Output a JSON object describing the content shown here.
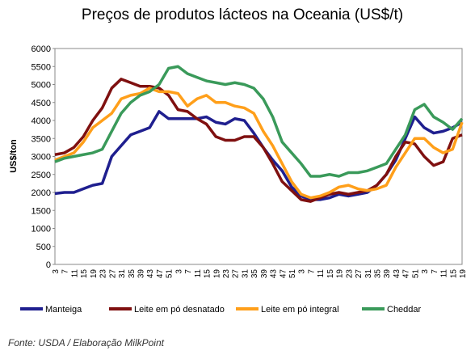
{
  "chart_data": {
    "type": "line",
    "title": "Preços de produtos lácteos na Oceania (US$/t)",
    "y_label": "US$/ton",
    "source": "Fonte: USDA / Elaboração  MilkPoint",
    "categories": [
      "3",
      "7",
      "11",
      "15",
      "19",
      "23",
      "27",
      "31",
      "35",
      "39",
      "43",
      "47",
      "51",
      "3",
      "7",
      "11",
      "15",
      "19",
      "23",
      "27",
      "31",
      "35",
      "39",
      "43",
      "47",
      "51",
      "3",
      "7",
      "11",
      "15",
      "19",
      "23",
      "27",
      "31",
      "35",
      "39",
      "43",
      "47",
      "51",
      "3",
      "7",
      "11",
      "15",
      "19"
    ],
    "ylim": [
      0,
      6000
    ],
    "yticks": [
      0,
      500,
      1000,
      1500,
      2000,
      2500,
      3000,
      3500,
      4000,
      4500,
      5000,
      5500,
      6000
    ],
    "grid": false,
    "legend": "bottom",
    "series": [
      {
        "name": "Manteiga",
        "color": "#1f1f8f",
        "values": [
          1970,
          2000,
          2000,
          2100,
          2200,
          2250,
          3000,
          3300,
          3600,
          3700,
          3800,
          4250,
          4050,
          4050,
          4050,
          4050,
          4100,
          3950,
          3900,
          4050,
          4000,
          3650,
          3250,
          2900,
          2600,
          2150,
          1900,
          1800,
          1800,
          1850,
          1950,
          1900,
          1950,
          2000,
          2200,
          2500,
          2900,
          3500,
          4100,
          3800,
          3650,
          3700,
          3800,
          3950
        ]
      },
      {
        "name": "Leite em pó desnatado",
        "color": "#7f1010",
        "values": [
          3050,
          3100,
          3250,
          3550,
          4000,
          4350,
          4900,
          5150,
          5050,
          4950,
          4950,
          4900,
          4700,
          4300,
          4250,
          4050,
          3900,
          3550,
          3450,
          3450,
          3550,
          3550,
          3250,
          2800,
          2300,
          2050,
          1800,
          1750,
          1850,
          1950,
          2000,
          1950,
          2000,
          2050,
          2200,
          2500,
          3000,
          3400,
          3350,
          3000,
          2750,
          2850,
          3500,
          3600
        ]
      },
      {
        "name": "Leite em pó integral",
        "color": "#ff9f1a",
        "values": [
          2900,
          3000,
          3100,
          3400,
          3800,
          4000,
          4200,
          4600,
          4700,
          4750,
          4900,
          4800,
          4800,
          4750,
          4400,
          4600,
          4700,
          4500,
          4500,
          4400,
          4350,
          4200,
          3700,
          3300,
          2800,
          2300,
          1950,
          1850,
          1900,
          2000,
          2150,
          2200,
          2100,
          2050,
          2100,
          2200,
          2700,
          3100,
          3500,
          3500,
          3250,
          3100,
          3200,
          3950
        ]
      },
      {
        "name": "Cheddar",
        "color": "#3a9a5a",
        "values": [
          2850,
          2950,
          3000,
          3050,
          3100,
          3200,
          3700,
          4200,
          4500,
          4700,
          4800,
          5000,
          5450,
          5500,
          5300,
          5200,
          5100,
          5050,
          5000,
          5050,
          5000,
          4900,
          4600,
          4100,
          3400,
          3100,
          2800,
          2450,
          2450,
          2500,
          2450,
          2550,
          2550,
          2600,
          2700,
          2800,
          3200,
          3600,
          4300,
          4450,
          4100,
          3950,
          3750,
          4050
        ]
      }
    ]
  }
}
